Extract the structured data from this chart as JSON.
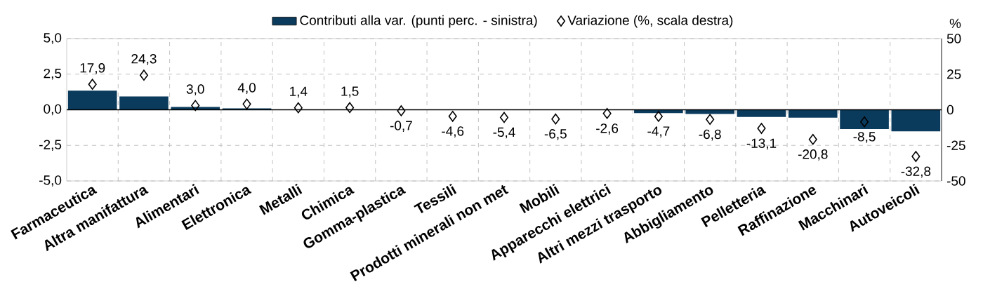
{
  "chart_data": {
    "type": "bar",
    "categories": [
      "Farmaceutica",
      "Altra manifattura",
      "Alimentari",
      "Elettronica",
      "Metalli",
      "Chimica",
      "Gomma-plastica",
      "Tessili",
      "Prodotti minerali non met",
      "Mobili",
      "Apparecchi elettrici",
      "Altri mezzi trasporto",
      "Abbigliamento",
      "Pelletteria",
      "Raffinazione",
      "Macchinari",
      "Autoveicoli"
    ],
    "series": [
      {
        "name": "Contributi alla var. (punti perc. - sinistra)",
        "color": "#0b3b5c",
        "values": [
          1.34,
          0.94,
          0.2,
          0.1,
          0.02,
          0.02,
          0,
          -0.01,
          -0.03,
          -0.03,
          -0.02,
          -0.23,
          -0.3,
          -0.5,
          -0.55,
          -1.35,
          -1.51
        ]
      },
      {
        "name": "Variazione (%, scala destra)",
        "type": "scatter",
        "axis": "y2",
        "color": "#000000",
        "values": [
          17.9,
          24.3,
          3.0,
          4.0,
          1.4,
          1.5,
          -0.7,
          -4.6,
          -5.4,
          -6.5,
          -2.6,
          -4.7,
          -6.8,
          -13.1,
          -20.8,
          -8.5,
          -32.8
        ],
        "value_labels": [
          "17,9",
          "24,3",
          "3,0",
          "4,0",
          "1,4",
          "1,5",
          "-0,7",
          "-4,6",
          "-5,4",
          "-6,5",
          "-2,6",
          "-4,7",
          "-6,8",
          "-13,1",
          "-20,8",
          "-8,5",
          "-32,8"
        ]
      }
    ],
    "ylim": [
      -5,
      5
    ],
    "yticks": [
      {
        "value": -5,
        "label": "-5,0"
      },
      {
        "value": -2.5,
        "label": "-2,5"
      },
      {
        "value": 0,
        "label": "0,0"
      },
      {
        "value": 2.5,
        "label": "2,5"
      },
      {
        "value": 5,
        "label": "5,0"
      }
    ],
    "y2lim": [
      -50,
      50
    ],
    "y2ticks": [
      -50,
      -25,
      0,
      25,
      50
    ],
    "y2label": "%",
    "grid": true,
    "legend": "top",
    "marker": "diamond"
  }
}
